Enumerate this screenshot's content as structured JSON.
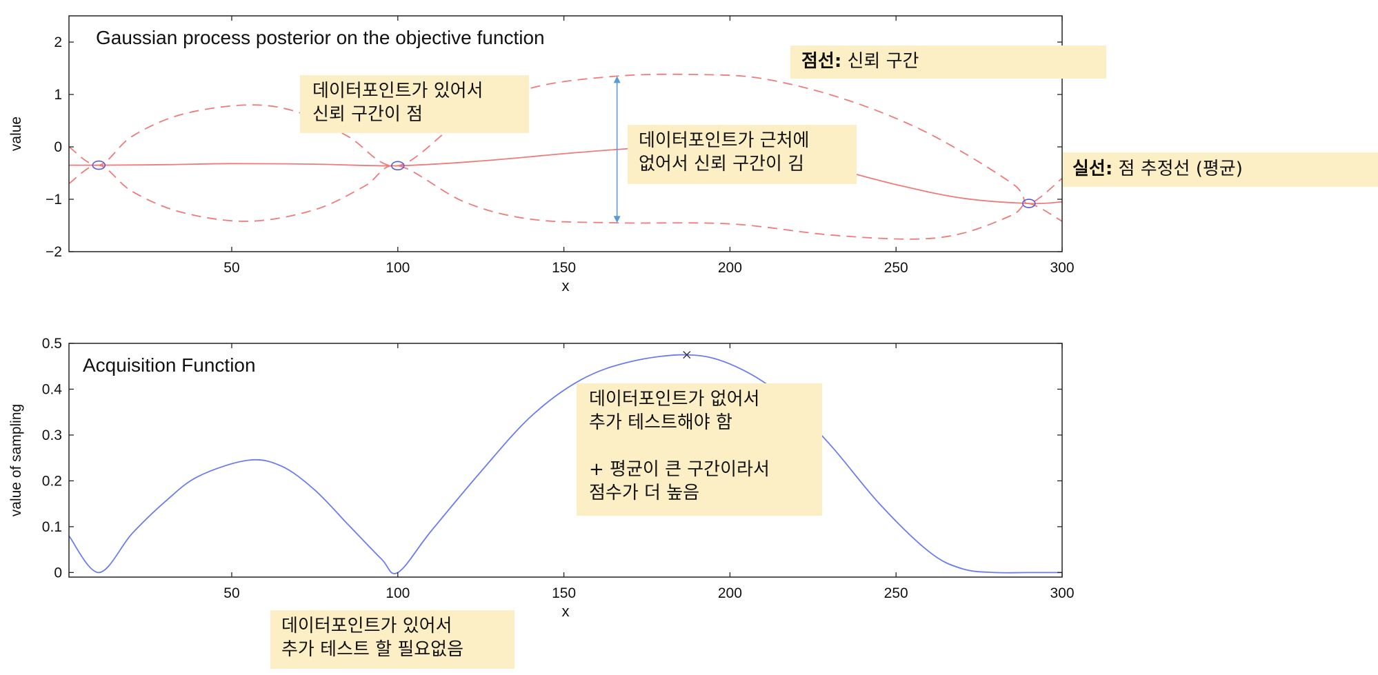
{
  "chart_data": [
    {
      "type": "line",
      "title": "Gaussian process posterior on the objective function",
      "xlabel": "x",
      "ylabel": "value",
      "xlim": [
        1,
        300
      ],
      "ylim": [
        -2,
        2.5
      ],
      "xticks": [
        50,
        100,
        150,
        200,
        250,
        300
      ],
      "yticks": [
        -2,
        -1,
        0,
        1,
        2
      ],
      "ytick_labels": [
        "−2",
        "−1",
        "0",
        "1",
        "2"
      ],
      "grid": false,
      "observations": [
        {
          "x": 10,
          "y": -0.35
        },
        {
          "x": 100,
          "y": -0.36
        },
        {
          "x": 290,
          "y": -1.08
        }
      ],
      "series": [
        {
          "style": "solid",
          "color": "#f07a7a",
          "x": [
            1,
            10,
            30,
            50,
            75,
            100,
            125,
            150,
            166,
            180,
            200,
            225,
            250,
            270,
            290,
            300
          ],
          "y": [
            -0.35,
            -0.35,
            -0.34,
            -0.32,
            -0.33,
            -0.36,
            -0.27,
            -0.13,
            -0.05,
            0.0,
            -0.05,
            -0.32,
            -0.72,
            -0.98,
            -1.08,
            -1.05
          ]
        },
        {
          "style": "dashed",
          "color": "#f07a7a",
          "x": [
            1,
            10,
            20,
            35,
            55,
            70,
            85,
            100,
            120,
            140,
            166,
            190,
            210,
            235,
            260,
            285,
            290,
            300
          ],
          "y": [
            0.0,
            -0.35,
            0.2,
            0.62,
            0.8,
            0.66,
            0.2,
            -0.36,
            0.55,
            1.12,
            1.35,
            1.38,
            1.3,
            0.9,
            0.25,
            -0.7,
            -1.08,
            -0.6
          ]
        },
        {
          "style": "dashed",
          "color": "#f07a7a",
          "x": [
            1,
            10,
            20,
            35,
            55,
            75,
            90,
            100,
            120,
            140,
            166,
            200,
            230,
            255,
            270,
            285,
            290,
            300
          ],
          "y": [
            -0.7,
            -0.35,
            -0.85,
            -1.25,
            -1.42,
            -1.2,
            -0.75,
            -0.36,
            -1.05,
            -1.38,
            -1.45,
            -1.47,
            -1.68,
            -1.76,
            -1.65,
            -1.3,
            -1.08,
            -1.42
          ]
        }
      ]
    },
    {
      "type": "line",
      "title": "Acquisition Function",
      "xlabel": "x",
      "ylabel": "value of sampling",
      "xlim": [
        1,
        300
      ],
      "ylim": [
        -0.01,
        0.5
      ],
      "xticks": [
        50,
        100,
        150,
        200,
        250,
        300
      ],
      "yticks": [
        0,
        0.1,
        0.2,
        0.3,
        0.4,
        0.5
      ],
      "ytick_labels": [
        "0",
        "0.1",
        "0.2",
        "0.3",
        "0.4",
        "0.5"
      ],
      "grid": false,
      "maximum": {
        "x": 187,
        "y": 0.475
      },
      "series": [
        {
          "style": "solid",
          "color": "#6b7cf0",
          "x": [
            1,
            10,
            20,
            30,
            40,
            55,
            65,
            75,
            85,
            95,
            100,
            110,
            125,
            140,
            155,
            170,
            187,
            200,
            215,
            230,
            245,
            260,
            270,
            280,
            290,
            300
          ],
          "y": [
            0.08,
            0.0,
            0.085,
            0.155,
            0.21,
            0.245,
            0.232,
            0.18,
            0.105,
            0.03,
            0.0,
            0.09,
            0.22,
            0.34,
            0.42,
            0.46,
            0.475,
            0.455,
            0.39,
            0.28,
            0.15,
            0.045,
            0.008,
            0.0,
            0.0,
            0.0
          ]
        }
      ]
    }
  ],
  "annotations": {
    "dashed": {
      "bold": "점선:",
      "text": "신뢰 구간"
    },
    "solid": {
      "bold": "실선:",
      "text": "점 추정선 (평균)"
    },
    "near_data": {
      "lines": [
        "데이터포인트가 있어서",
        "신뢰 구간이 점"
      ]
    },
    "far_data": {
      "lines": [
        "데이터포인트가 근처에",
        "없어서 신뢰 구간이 김"
      ]
    },
    "high_acq": {
      "lines": [
        "데이터포인트가 없어서",
        "추가 테스트해야 함",
        "",
        "+ 평균이 큰 구간이라서",
        "점수가 더 높음"
      ]
    },
    "low_acq": {
      "lines": [
        "데이터포인트가 있어서",
        "추가 테스트 할 필요없음"
      ]
    }
  }
}
